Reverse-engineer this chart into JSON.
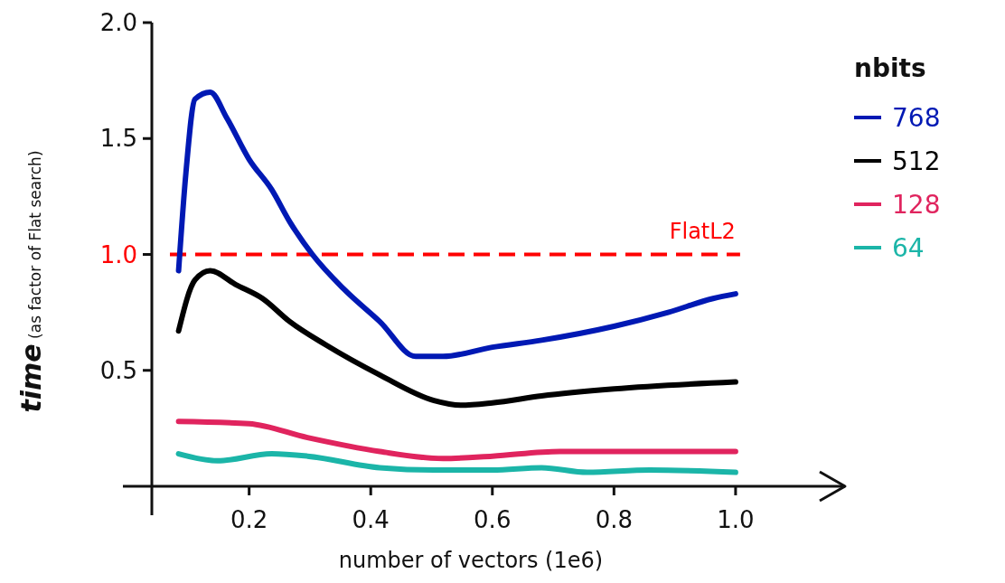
{
  "chart_data": {
    "type": "line",
    "xlabel": "number of vectors (1e6)",
    "ylabel": "time (as factor of Flat search)",
    "legend_title": "nbits",
    "legend": "right",
    "grid": false,
    "line_style": "solid",
    "xlim": [
      0.04,
      1.18
    ],
    "ylim": [
      0,
      2.0
    ],
    "xticks": [
      {
        "value": 0.2,
        "label": "0.2"
      },
      {
        "value": 0.4,
        "label": "0.4"
      },
      {
        "value": 0.6,
        "label": "0.6"
      },
      {
        "value": 0.8,
        "label": "0.8"
      },
      {
        "value": 1.0,
        "label": "1.0"
      }
    ],
    "yticks": [
      {
        "value": 0.5,
        "label": "0.5"
      },
      {
        "value": 1.0,
        "label": "1.0"
      },
      {
        "value": 1.5,
        "label": "1.5"
      },
      {
        "value": 2.0,
        "label": "2.0"
      }
    ],
    "ref_lines": [
      {
        "axis": "y",
        "value": 1.0,
        "label": "FlatL2",
        "color": "#ff0000",
        "line_style": "dashed"
      }
    ],
    "series": [
      {
        "name": "768",
        "color": "#0019b4",
        "x": [
          0.084,
          0.096,
          0.111,
          0.136,
          0.163,
          0.2,
          0.237,
          0.267,
          0.304,
          0.356,
          0.415,
          0.474,
          0.519,
          0.6,
          0.681,
          0.8,
          0.889,
          0.963,
          1.0
        ],
        "values": [
          0.93,
          1.35,
          1.67,
          1.7,
          1.59,
          1.41,
          1.28,
          1.14,
          1.0,
          0.85,
          0.71,
          0.56,
          0.56,
          0.6,
          0.63,
          0.69,
          0.75,
          0.81,
          0.83
        ]
      },
      {
        "name": "512",
        "color": "#000000",
        "x": [
          0.084,
          0.111,
          0.136,
          0.178,
          0.222,
          0.267,
          0.326,
          0.415,
          0.504,
          0.548,
          0.6,
          0.681,
          0.8,
          1.0
        ],
        "values": [
          0.67,
          0.89,
          0.93,
          0.87,
          0.81,
          0.71,
          0.61,
          0.48,
          0.37,
          0.35,
          0.36,
          0.39,
          0.42,
          0.45
        ]
      },
      {
        "name": "128",
        "color": "#e0245e",
        "x": [
          0.084,
          0.2,
          0.296,
          0.415,
          0.519,
          0.6,
          0.711,
          0.859,
          1.0
        ],
        "values": [
          0.28,
          0.27,
          0.21,
          0.15,
          0.12,
          0.13,
          0.15,
          0.15,
          0.15
        ]
      },
      {
        "name": "64",
        "color": "#1bb5a8",
        "x": [
          0.084,
          0.148,
          0.237,
          0.296,
          0.415,
          0.504,
          0.6,
          0.681,
          0.756,
          0.859,
          1.0
        ],
        "values": [
          0.14,
          0.11,
          0.14,
          0.13,
          0.08,
          0.07,
          0.07,
          0.08,
          0.06,
          0.07,
          0.06
        ]
      }
    ]
  }
}
